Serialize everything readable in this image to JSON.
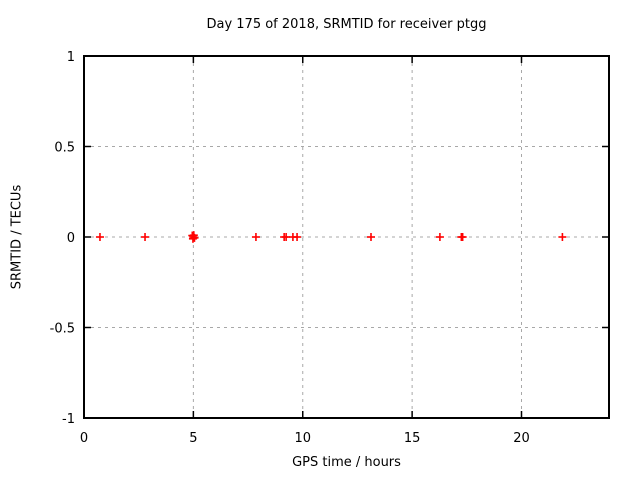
{
  "window": {
    "background_color": "#ffffff",
    "text_color": "#000000"
  },
  "chart_data": {
    "type": "scatter",
    "title": "Day 175 of 2018, SRMTID for receiver ptgg",
    "xlabel": "GPS time / hours",
    "ylabel": "SRMTID / TECUs",
    "xlim": [
      0,
      24
    ],
    "ylim": [
      -1,
      1
    ],
    "xticks": {
      "values": [
        0,
        5,
        10,
        15,
        20
      ],
      "labels": [
        "0",
        "5",
        "10",
        "15",
        "20"
      ]
    },
    "yticks": {
      "values": [
        1,
        0.5,
        0,
        -0.5,
        -1
      ],
      "labels": [
        "1",
        "0.5",
        "0",
        "-0.5",
        "-1"
      ]
    },
    "grid": true,
    "grid_style": "dashed",
    "grid_color": "#a8a8a8",
    "frame_color": "#000000",
    "legend_position": "none",
    "marker": {
      "shape": "plus",
      "color": "#ff0000",
      "size": 8
    },
    "series": [
      {
        "name": "SRMTID",
        "points": [
          {
            "x": 0.73,
            "y": 0.0
          },
          {
            "x": 2.79,
            "y": 0.0
          },
          {
            "x": 4.95,
            "y": 0.008
          },
          {
            "x": 4.98,
            "y": -0.01
          },
          {
            "x": 5.0,
            "y": 0.0
          },
          {
            "x": 5.02,
            "y": 0.01
          },
          {
            "x": 5.05,
            "y": -0.005
          },
          {
            "x": 7.86,
            "y": 0.0
          },
          {
            "x": 9.15,
            "y": 0.0
          },
          {
            "x": 9.24,
            "y": 0.0
          },
          {
            "x": 9.55,
            "y": 0.0
          },
          {
            "x": 9.74,
            "y": 0.0
          },
          {
            "x": 13.12,
            "y": 0.0
          },
          {
            "x": 16.27,
            "y": 0.0
          },
          {
            "x": 17.25,
            "y": 0.0
          },
          {
            "x": 17.31,
            "y": 0.0
          },
          {
            "x": 21.87,
            "y": 0.0
          }
        ]
      }
    ]
  }
}
